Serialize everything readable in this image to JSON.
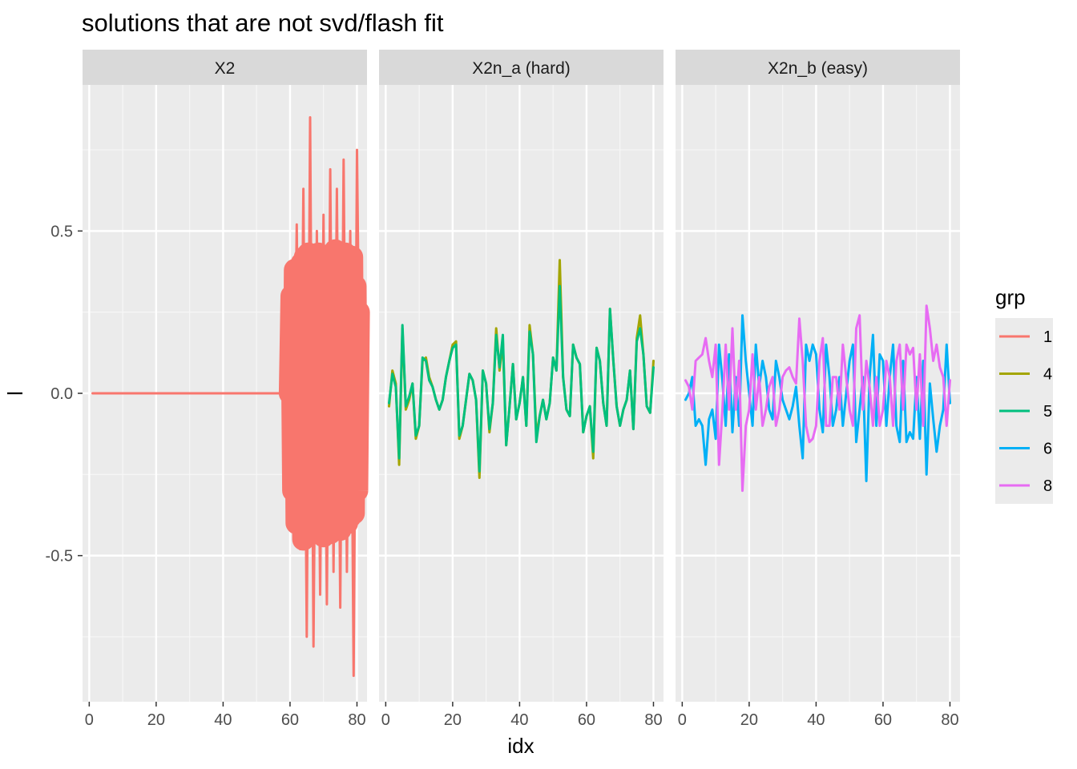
{
  "chart_data": {
    "type": "line",
    "title": "solutions that are not svd/flash fit",
    "xlabel": "idx",
    "ylabel": "l",
    "xlim": [
      -2,
      83
    ],
    "ylim": [
      -0.95,
      0.95
    ],
    "x_ticks": [
      0,
      20,
      40,
      60,
      80
    ],
    "y_ticks": [
      -0.5,
      0.0,
      0.5
    ],
    "x_tick_labels": [
      "0",
      "20",
      "40",
      "60",
      "80"
    ],
    "y_tick_labels": [
      "-0.5",
      "0.0",
      "0.5"
    ],
    "grid": true,
    "legend_position": "right",
    "legend": {
      "title": "grp",
      "items": [
        {
          "label": "1",
          "color": "#F8766D"
        },
        {
          "label": "4",
          "color": "#A3A500"
        },
        {
          "label": "5",
          "color": "#00BF7D"
        },
        {
          "label": "6",
          "color": "#00B0F6"
        },
        {
          "label": "8",
          "color": "#E76BF3"
        }
      ]
    },
    "facets": [
      {
        "label": "X2",
        "series": [
          {
            "name": "1",
            "color": "#F8766D",
            "x": [
              1,
              5,
              10,
              15,
              20,
              25,
              30,
              35,
              40,
              45,
              50,
              55,
              60,
              61,
              62,
              63,
              64,
              65,
              66,
              67,
              68,
              69,
              70,
              71,
              72,
              73,
              74,
              75,
              76,
              77,
              78,
              79,
              80,
              81
            ],
            "y": [
              0,
              0,
              0,
              0,
              0,
              0,
              0,
              0,
              0,
              0,
              0,
              0,
              0,
              -0.33,
              0.52,
              -0.48,
              0.63,
              -0.75,
              0.85,
              -0.78,
              0.5,
              -0.62,
              0.55,
              -0.65,
              0.69,
              -0.55,
              0.63,
              -0.66,
              0.72,
              -0.55,
              0.5,
              -0.87,
              0.75,
              -0.2
            ],
            "stroke_width": 3
          },
          {
            "name": "1",
            "color": "#F8766D",
            "x": [
              60,
              60.5,
              61,
              61.5,
              62,
              62.5,
              63,
              63.5,
              64,
              64.5,
              65,
              65.5,
              66,
              66.5,
              67,
              67.5,
              68,
              68.5,
              69,
              69.5,
              70,
              70.5,
              71,
              71.5,
              72,
              72.5,
              73,
              73.5,
              74,
              74.5,
              75,
              75.5,
              76,
              76.5,
              77,
              77.5,
              78,
              78.5,
              79,
              79.5,
              80,
              80.5
            ],
            "y": [
              0,
              0.3,
              -0.3,
              0.38,
              -0.4,
              0.35,
              -0.35,
              0.4,
              -0.45,
              0.42,
              -0.38,
              0.43,
              -0.4,
              0.37,
              -0.42,
              0.4,
              -0.38,
              0.43,
              -0.41,
              0.36,
              -0.44,
              0.4,
              -0.37,
              0.41,
              -0.43,
              0.38,
              -0.36,
              0.44,
              -0.4,
              0.37,
              -0.42,
              0.39,
              -0.36,
              0.43,
              -0.4,
              0.35,
              -0.38,
              0.42,
              -0.37,
              0.33,
              -0.3,
              0.25
            ],
            "stroke_width": 28
          }
        ]
      },
      {
        "label": "X2n_a (hard)",
        "series": [
          {
            "name": "4",
            "color": "#A3A500",
            "x": [
              1,
              2,
              3,
              4,
              5,
              6,
              7,
              8,
              9,
              10,
              11,
              12,
              13,
              14,
              15,
              16,
              17,
              18,
              19,
              20,
              21,
              22,
              23,
              24,
              25,
              26,
              27,
              28,
              29,
              30,
              31,
              32,
              33,
              34,
              35,
              36,
              37,
              38,
              39,
              40,
              41,
              42,
              43,
              44,
              45,
              46,
              47,
              48,
              49,
              50,
              51,
              52,
              53,
              54,
              55,
              56,
              57,
              58,
              59,
              60,
              61,
              62,
              63,
              64,
              65,
              66,
              67,
              68,
              69,
              70,
              71,
              72,
              73,
              74,
              75,
              76,
              77,
              78,
              79,
              80
            ],
            "y": [
              -0.04,
              0.07,
              0.03,
              -0.22,
              0.2,
              -0.05,
              -0.02,
              0.03,
              -0.14,
              -0.1,
              0.1,
              0.11,
              0.05,
              0.02,
              -0.02,
              -0.05,
              -0.02,
              0.05,
              0.1,
              0.15,
              0.16,
              -0.14,
              -0.1,
              -0.02,
              0.06,
              0.04,
              -0.02,
              -0.26,
              0.07,
              0.03,
              -0.12,
              -0.03,
              0.2,
              0.07,
              0.16,
              -0.16,
              -0.04,
              0.09,
              -0.08,
              -0.03,
              0.05,
              -0.1,
              0.21,
              0.12,
              -0.13,
              -0.07,
              -0.02,
              -0.08,
              -0.03,
              0.11,
              0.07,
              0.41,
              0.05,
              -0.05,
              -0.07,
              0.15,
              0.11,
              0.09,
              -0.12,
              -0.07,
              -0.04,
              -0.2,
              0.14,
              0.1,
              -0.03,
              -0.1,
              0.26,
              0.1,
              -0.04,
              -0.1,
              -0.05,
              -0.02,
              0.07,
              -0.11,
              0.17,
              0.24,
              0.12,
              -0.04,
              -0.06,
              0.1
            ],
            "stroke_width": 3
          },
          {
            "name": "5",
            "color": "#00BF7D",
            "x": [
              1,
              2,
              3,
              4,
              5,
              6,
              7,
              8,
              9,
              10,
              11,
              12,
              13,
              14,
              15,
              16,
              17,
              18,
              19,
              20,
              21,
              22,
              23,
              24,
              25,
              26,
              27,
              28,
              29,
              30,
              31,
              32,
              33,
              34,
              35,
              36,
              37,
              38,
              39,
              40,
              41,
              42,
              43,
              44,
              45,
              46,
              47,
              48,
              49,
              50,
              51,
              52,
              53,
              54,
              55,
              56,
              57,
              58,
              59,
              60,
              61,
              62,
              63,
              64,
              65,
              66,
              67,
              68,
              69,
              70,
              71,
              72,
              73,
              74,
              75,
              76,
              77,
              78,
              79,
              80
            ],
            "y": [
              -0.03,
              0.06,
              0.02,
              -0.2,
              0.21,
              -0.04,
              -0.01,
              0.03,
              -0.13,
              -0.1,
              0.11,
              0.1,
              0.04,
              0.02,
              -0.02,
              -0.05,
              -0.02,
              0.05,
              0.1,
              0.14,
              0.15,
              -0.13,
              -0.1,
              -0.02,
              0.06,
              0.04,
              -0.02,
              -0.24,
              0.07,
              0.03,
              -0.11,
              -0.03,
              0.18,
              0.08,
              0.18,
              -0.16,
              -0.04,
              0.09,
              -0.08,
              -0.03,
              0.05,
              -0.1,
              0.19,
              0.12,
              -0.15,
              -0.07,
              -0.02,
              -0.08,
              -0.03,
              0.11,
              0.07,
              0.33,
              0.05,
              -0.05,
              -0.07,
              0.15,
              0.11,
              0.09,
              -0.12,
              -0.07,
              -0.04,
              -0.18,
              0.14,
              0.1,
              -0.03,
              -0.1,
              0.26,
              0.1,
              -0.04,
              -0.1,
              -0.05,
              -0.02,
              0.07,
              -0.11,
              0.16,
              0.2,
              0.12,
              -0.04,
              -0.06,
              0.08
            ],
            "stroke_width": 3
          }
        ]
      },
      {
        "label": "X2n_b (easy)",
        "series": [
          {
            "name": "6",
            "color": "#00B0F6",
            "x": [
              1,
              2,
              3,
              4,
              5,
              6,
              7,
              8,
              9,
              10,
              11,
              12,
              13,
              14,
              15,
              16,
              17,
              18,
              19,
              20,
              21,
              22,
              23,
              24,
              25,
              26,
              27,
              28,
              29,
              30,
              31,
              32,
              33,
              34,
              35,
              36,
              37,
              38,
              39,
              40,
              41,
              42,
              43,
              44,
              45,
              46,
              47,
              48,
              49,
              50,
              51,
              52,
              53,
              54,
              55,
              56,
              57,
              58,
              59,
              60,
              61,
              62,
              63,
              64,
              65,
              66,
              67,
              68,
              69,
              70,
              71,
              72,
              73,
              74,
              75,
              76,
              77,
              78,
              79,
              80
            ],
            "y": [
              -0.02,
              0,
              0.05,
              -0.1,
              -0.08,
              -0.1,
              -0.22,
              -0.08,
              -0.05,
              -0.14,
              0.15,
              0.04,
              -0.1,
              0.12,
              -0.12,
              0.05,
              -0.1,
              0.24,
              0.1,
              0,
              -0.1,
              0.15,
              0.02,
              0.1,
              0.05,
              -0.05,
              -0.08,
              0.1,
              0.05,
              -0.02,
              -0.05,
              -0.08,
              -0.04,
              0.02,
              -0.1,
              -0.2,
              0.15,
              0.1,
              0.15,
              0.12,
              -0.05,
              -0.12,
              0.15,
              0.05,
              -0.1,
              -0.05,
              0.05,
              -0.1,
              0,
              0.1,
              0.15,
              -0.15,
              -0.05,
              0.05,
              -0.27,
              0.05,
              0.18,
              -0.1,
              0.12,
              0.1,
              -0.1,
              0.05,
              0.15,
              -0.1,
              -0.15,
              0.1,
              -0.15,
              -0.12,
              -0.14,
              0.05,
              -0.14,
              0.1,
              -0.25,
              0.03,
              -0.08,
              -0.18,
              -0.1,
              -0.05,
              0.15,
              -0.03
            ],
            "stroke_width": 3
          },
          {
            "name": "8",
            "color": "#E76BF3",
            "x": [
              1,
              2,
              3,
              4,
              5,
              6,
              7,
              8,
              9,
              10,
              11,
              12,
              13,
              14,
              15,
              16,
              17,
              18,
              19,
              20,
              21,
              22,
              23,
              24,
              25,
              26,
              27,
              28,
              29,
              30,
              31,
              32,
              33,
              34,
              35,
              36,
              37,
              38,
              39,
              40,
              41,
              42,
              43,
              44,
              45,
              46,
              47,
              48,
              49,
              50,
              51,
              52,
              53,
              54,
              55,
              56,
              57,
              58,
              59,
              60,
              61,
              62,
              63,
              64,
              65,
              66,
              67,
              68,
              69,
              70,
              71,
              72,
              73,
              74,
              75,
              76,
              77,
              78,
              79,
              80
            ],
            "y": [
              0.04,
              0.02,
              -0.05,
              0.1,
              0.11,
              0.12,
              0.17,
              0.1,
              0.05,
              0.15,
              -0.22,
              -0.05,
              0.15,
              -0.05,
              0.2,
              -0.05,
              0.1,
              -0.3,
              -0.1,
              -0.05,
              0.12,
              -0.05,
              0.05,
              -0.1,
              -0.05,
              0.02,
              0.05,
              -0.1,
              -0.05,
              0.05,
              0.07,
              0.08,
              0.05,
              0.03,
              0.23,
              0.1,
              -0.1,
              -0.15,
              -0.14,
              -0.1,
              0.1,
              0.17,
              -0.1,
              -0.1,
              0.05,
              0.05,
              -0.05,
              0.15,
              0.05,
              -0.05,
              -0.1,
              0.2,
              0.24,
              -0.05,
              0.1,
              0.02,
              -0.1,
              0.05,
              -0.1,
              -0.05,
              0.1,
              0.05,
              -0.1,
              0.1,
              0.15,
              -0.05,
              0.15,
              0.12,
              0.14,
              -0.05,
              0.12,
              -0.1,
              0.27,
              0.2,
              0.1,
              0.15,
              0.08,
              0.05,
              -0.1,
              0.04
            ],
            "stroke_width": 3
          }
        ]
      }
    ]
  }
}
